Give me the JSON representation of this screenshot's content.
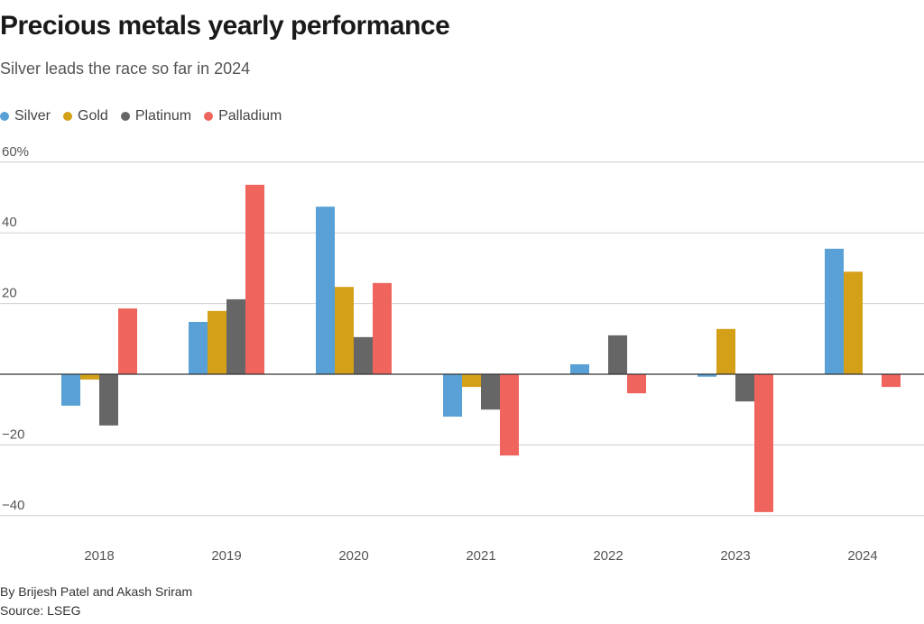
{
  "chart_data": {
    "type": "bar",
    "title": "Precious metals yearly performance",
    "subtitle": "Silver leads the race so far in 2024",
    "categories": [
      "2018",
      "2019",
      "2020",
      "2021",
      "2022",
      "2023",
      "2024"
    ],
    "series": [
      {
        "name": "Silver",
        "color": "#58a0d6",
        "values": [
          -8.9,
          14.8,
          47.4,
          -12.0,
          2.8,
          -0.7,
          35.5
        ]
      },
      {
        "name": "Gold",
        "color": "#d4a017",
        "values": [
          -1.5,
          17.9,
          24.7,
          -3.6,
          0.0,
          12.8,
          29.0
        ]
      },
      {
        "name": "Platinum",
        "color": "#666666",
        "values": [
          -14.5,
          21.2,
          10.5,
          -10.0,
          11.0,
          -7.7,
          0.0
        ]
      },
      {
        "name": "Palladium",
        "color": "#ef655d",
        "values": [
          18.6,
          53.6,
          25.8,
          -23.0,
          -5.4,
          -39.0,
          -3.6
        ]
      }
    ],
    "yticks": [
      60,
      40,
      20,
      -20,
      -40
    ],
    "ytick_labels": [
      "60%",
      "40",
      "20",
      "−20",
      "−40"
    ],
    "ylim": [
      -45,
      60
    ],
    "xlabel": "",
    "ylabel": "",
    "grid": true,
    "legend_position": "top-left"
  },
  "byline": "By Brijesh Patel and Akash Sriram",
  "source": "Source: LSEG"
}
